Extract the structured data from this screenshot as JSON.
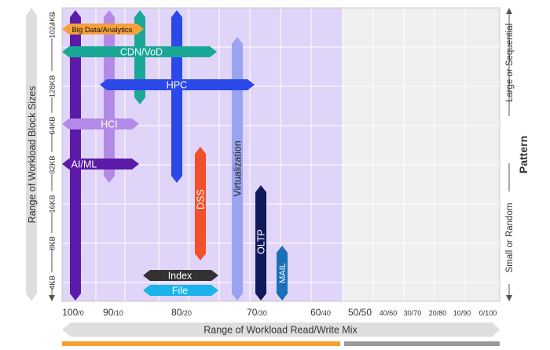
{
  "y_axis": {
    "title": "Range of Workload Block Sizes",
    "ticks": [
      "1024KB",
      "128KB",
      "64KB",
      "32KB",
      "16KB",
      "8KB",
      "4KB"
    ]
  },
  "x_axis": {
    "title": "Range of Workload Read/Write Mix",
    "ticks": [
      {
        "big": "100",
        "small": "/0"
      },
      {
        "big": "90",
        "small": "/10"
      },
      {
        "big": "80",
        "small": "/20"
      },
      {
        "big": "70",
        "small": "/30"
      },
      {
        "big": "60",
        "small": "/40"
      },
      {
        "big": "50/50",
        "small": ""
      },
      {
        "big": "",
        "small": "40/60"
      },
      {
        "big": "",
        "small": "30/70"
      },
      {
        "big": "",
        "small": "20/80"
      },
      {
        "big": "",
        "small": "10/90"
      },
      {
        "big": "",
        "small": "0/100"
      }
    ]
  },
  "pattern": {
    "title": "Pattern",
    "top_label": "Large or Sequential",
    "bottom_label": "Small or Random"
  },
  "colors": {
    "shaded_region": "#e0d4f8",
    "empty_region": "#efefef",
    "orange_bar": "#f5a030",
    "gray_bar": "#9a9a9a"
  },
  "workloads": [
    {
      "name": "Big Data/Analytics",
      "color": "#f5a03a",
      "text_color": "#111111"
    },
    {
      "name": "CDN/VoD",
      "color": "#1aa896",
      "text_color": "#ffffff"
    },
    {
      "name": "HPC",
      "color": "#2b48e8",
      "text_color": "#ffffff"
    },
    {
      "name": "HCI",
      "color": "#b48ae8",
      "text_color": "#ffffff"
    },
    {
      "name": "AI/ML",
      "color": "#5b1aa8",
      "text_color": "#ffffff"
    },
    {
      "name": "Virtualization",
      "color": "#9aa4f0",
      "text_color": "#222222"
    },
    {
      "name": "DSS",
      "color": "#f0502a",
      "text_color": "#ffffff"
    },
    {
      "name": "OLTP",
      "color": "#101a5a",
      "text_color": "#ffffff"
    },
    {
      "name": "MAIL",
      "color": "#1a70b8",
      "text_color": "#ffffff"
    },
    {
      "name": "Index",
      "color": "#333333",
      "text_color": "#ffffff"
    },
    {
      "name": "File",
      "color": "#1ab4ea",
      "text_color": "#ffffff"
    }
  ]
}
